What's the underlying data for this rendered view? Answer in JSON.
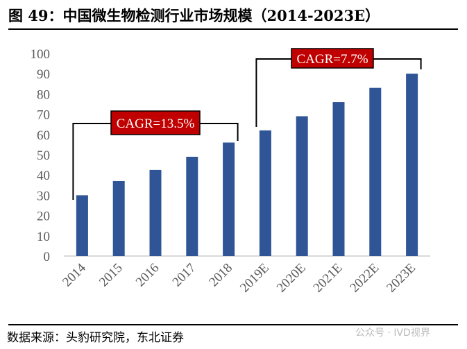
{
  "chart_data": {
    "type": "bar",
    "title": "图 49：中国微生物检测行业市场规模（2014-2023E）",
    "categories": [
      "2014",
      "2015",
      "2016",
      "2017",
      "2018",
      "2019E",
      "2020E",
      "2021E",
      "2022E",
      "2023E"
    ],
    "values": [
      30,
      37,
      42.5,
      49,
      56,
      62,
      69,
      76,
      83,
      90
    ],
    "ylim": [
      0,
      100
    ],
    "yticks": [
      0,
      10,
      20,
      30,
      40,
      50,
      60,
      70,
      80,
      90,
      100
    ],
    "grid": false,
    "bar_color": "#2F5597",
    "annotations": [
      {
        "text": "CAGR=13.5%",
        "from": "2014",
        "to": "2018",
        "color": "#C00000"
      },
      {
        "text": "CAGR=7.7%",
        "from": "2019E",
        "to": "2023E",
        "color": "#C00000"
      }
    ]
  },
  "source": "数据来源：头豹研究院，东北证券",
  "watermark": "公众号 · IVD视界"
}
